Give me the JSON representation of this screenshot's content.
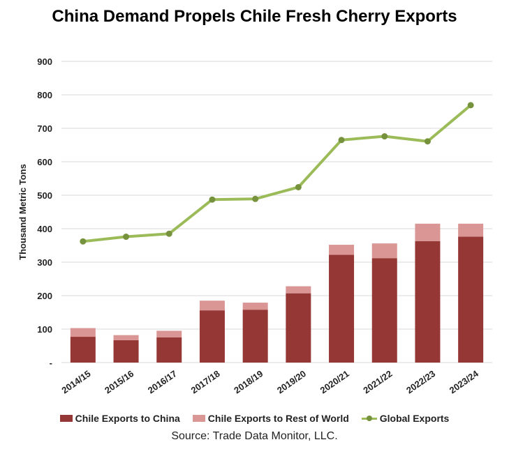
{
  "chart_data": {
    "type": "bar",
    "title": "China Demand Propels Chile Fresh Cherry Exports",
    "ylabel": "Thousand Metric Tons",
    "xlabel": "",
    "ylim": [
      0,
      900
    ],
    "yticks": [
      "-",
      "100",
      "200",
      "300",
      "400",
      "500",
      "600",
      "700",
      "800",
      "900"
    ],
    "grid": true,
    "legend_position": "bottom",
    "categories": [
      "2014/15",
      "2015/16",
      "2016/17",
      "2017/18",
      "2018/19",
      "2019/20",
      "2020/21",
      "2021/22",
      "2022/23",
      "2023/24"
    ],
    "series": [
      {
        "name": "Chile Exports to China",
        "kind": "stacked-bar",
        "color": "#953735",
        "values": [
          77,
          67,
          75,
          156,
          158,
          207,
          322,
          312,
          363,
          376
        ]
      },
      {
        "name": "Chile Exports to Rest of World",
        "kind": "stacked-bar",
        "color": "#d99694",
        "values": [
          26,
          15,
          20,
          29,
          21,
          21,
          30,
          44,
          52,
          39
        ]
      },
      {
        "name": "Global Exports",
        "kind": "line",
        "color": "#9bbb59",
        "marker_color": "#76923c",
        "values": [
          362,
          376,
          385,
          487,
          489,
          524,
          665,
          676,
          661,
          769
        ]
      }
    ],
    "source": "Source: Trade Data Monitor, LLC."
  }
}
